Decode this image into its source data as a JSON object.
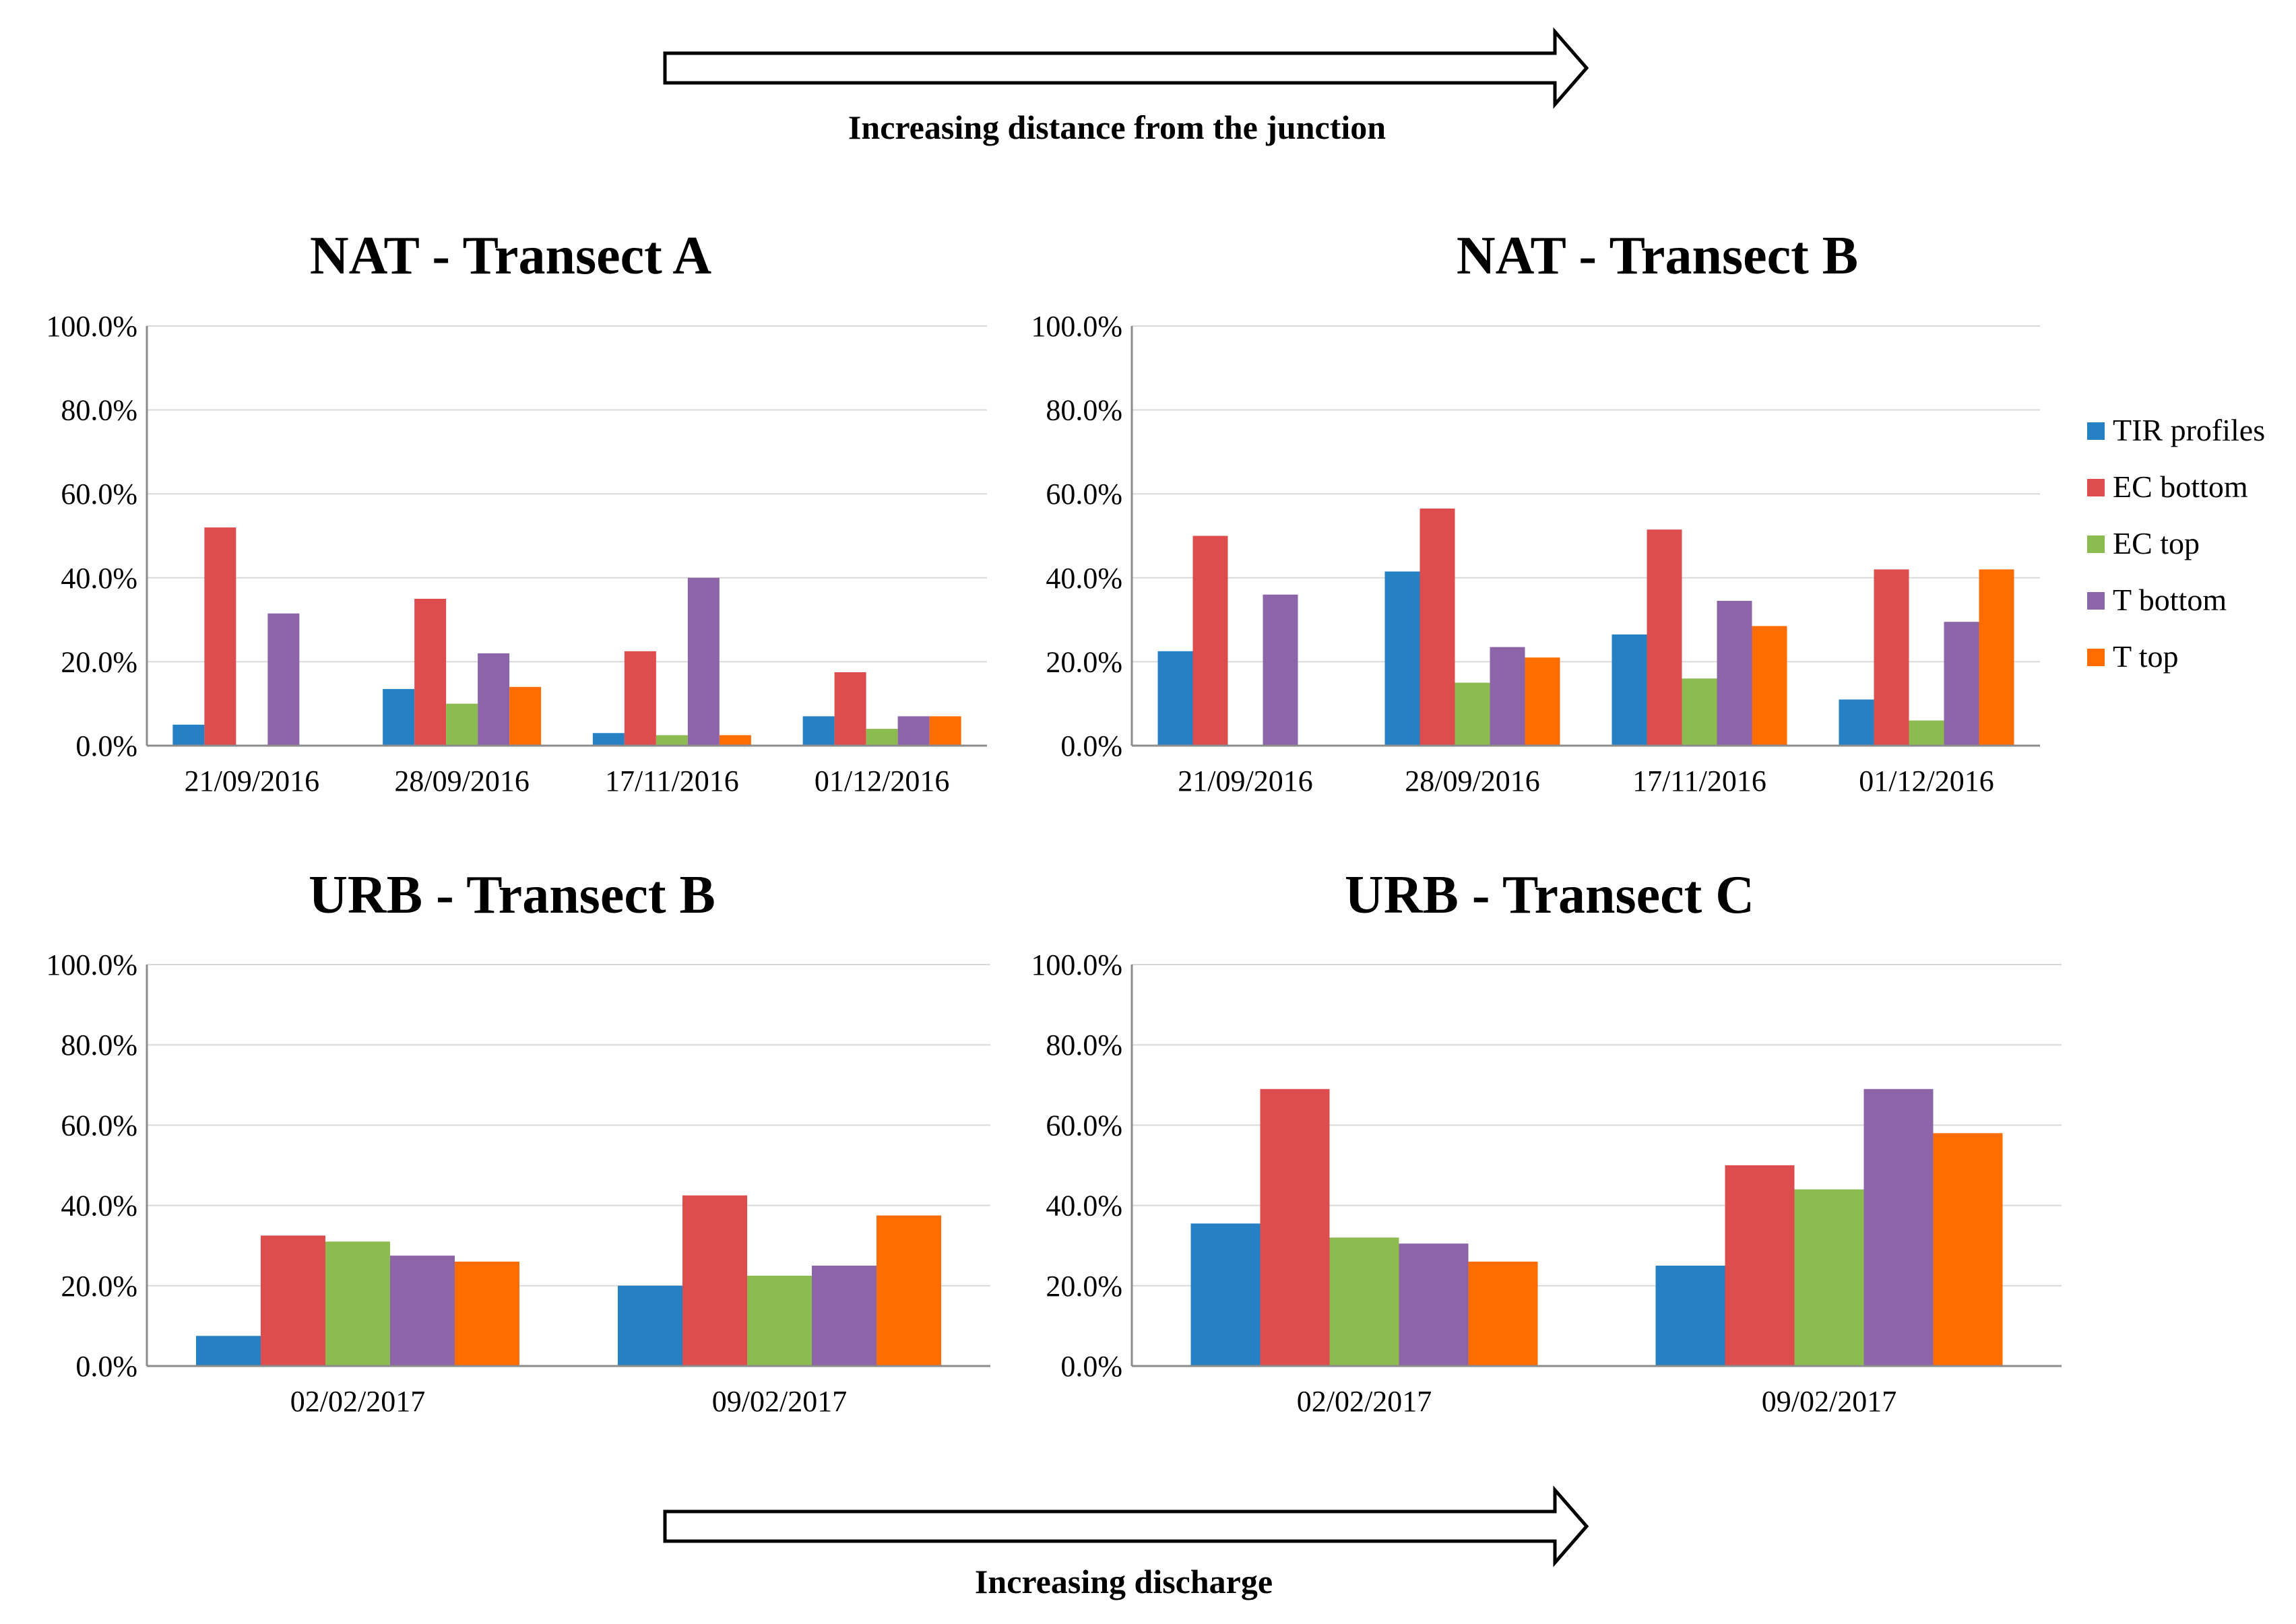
{
  "annotations": {
    "top_arrow_label": "Increasing distance from the junction",
    "bottom_arrow_label": "Increasing discharge"
  },
  "legend": [
    {
      "name": "TIR profiles",
      "color": "#2581C4"
    },
    {
      "name": "EC bottom",
      "color": "#DE4D4D"
    },
    {
      "name": "EC top",
      "color": "#8CBC4F"
    },
    {
      "name": "T bottom",
      "color": "#8C65A9"
    },
    {
      "name": "T top",
      "color": "#FF6C00"
    }
  ],
  "chart_data": [
    {
      "type": "bar",
      "title": "NAT - Transect A",
      "categories": [
        "21/09/2016",
        "28/09/2016",
        "17/11/2016",
        "01/12/2016"
      ],
      "yticks": [
        "0.0%",
        "20.0%",
        "40.0%",
        "60.0%",
        "80.0%",
        "100.0%"
      ],
      "ylim": [
        0,
        100
      ],
      "series": [
        {
          "name": "TIR profiles",
          "values": [
            5.0,
            13.5,
            3.0,
            7.0
          ]
        },
        {
          "name": "EC bottom",
          "values": [
            52.0,
            35.0,
            22.5,
            17.5
          ]
        },
        {
          "name": "EC top",
          "values": [
            0,
            10.0,
            2.5,
            4.0
          ]
        },
        {
          "name": "T bottom",
          "values": [
            31.5,
            22.0,
            40.0,
            7.0
          ]
        },
        {
          "name": "T top",
          "values": [
            0,
            14.0,
            2.5,
            7.0
          ]
        }
      ]
    },
    {
      "type": "bar",
      "title": "NAT - Transect B",
      "categories": [
        "21/09/2016",
        "28/09/2016",
        "17/11/2016",
        "01/12/2016"
      ],
      "yticks": [
        "0.0%",
        "20.0%",
        "40.0%",
        "60.0%",
        "80.0%",
        "100.0%"
      ],
      "ylim": [
        0,
        100
      ],
      "series": [
        {
          "name": "TIR profiles",
          "values": [
            22.5,
            41.5,
            26.5,
            11.0
          ]
        },
        {
          "name": "EC bottom",
          "values": [
            50.0,
            56.5,
            51.5,
            42.0
          ]
        },
        {
          "name": "EC top",
          "values": [
            0,
            15.0,
            16.0,
            6.0
          ]
        },
        {
          "name": "T bottom",
          "values": [
            36.0,
            23.5,
            34.5,
            29.5
          ]
        },
        {
          "name": "T top",
          "values": [
            0,
            21.0,
            28.5,
            42.0
          ]
        }
      ]
    },
    {
      "type": "bar",
      "title": "URB - Transect B",
      "categories": [
        "02/02/2017",
        "09/02/2017"
      ],
      "yticks": [
        "0.0%",
        "20.0%",
        "40.0%",
        "60.0%",
        "80.0%",
        "100.0%"
      ],
      "ylim": [
        0,
        100
      ],
      "series": [
        {
          "name": "TIR profiles",
          "values": [
            7.5,
            20.0
          ]
        },
        {
          "name": "EC bottom",
          "values": [
            32.5,
            42.5
          ]
        },
        {
          "name": "EC top",
          "values": [
            31.0,
            22.5
          ]
        },
        {
          "name": "T bottom",
          "values": [
            27.5,
            25.0
          ]
        },
        {
          "name": "T top",
          "values": [
            26.0,
            37.5
          ]
        }
      ]
    },
    {
      "type": "bar",
      "title": "URB - Transect C",
      "categories": [
        "02/02/2017",
        "09/02/2017"
      ],
      "yticks": [
        "0.0%",
        "20.0%",
        "40.0%",
        "60.0%",
        "80.0%",
        "100.0%"
      ],
      "ylim": [
        0,
        100
      ],
      "series": [
        {
          "name": "TIR profiles",
          "values": [
            35.5,
            25.0
          ]
        },
        {
          "name": "EC bottom",
          "values": [
            69.0,
            50.0
          ]
        },
        {
          "name": "EC top",
          "values": [
            32.0,
            44.0
          ]
        },
        {
          "name": "T bottom",
          "values": [
            30.5,
            69.0
          ]
        },
        {
          "name": "T top",
          "values": [
            26.0,
            58.0
          ]
        }
      ]
    }
  ]
}
